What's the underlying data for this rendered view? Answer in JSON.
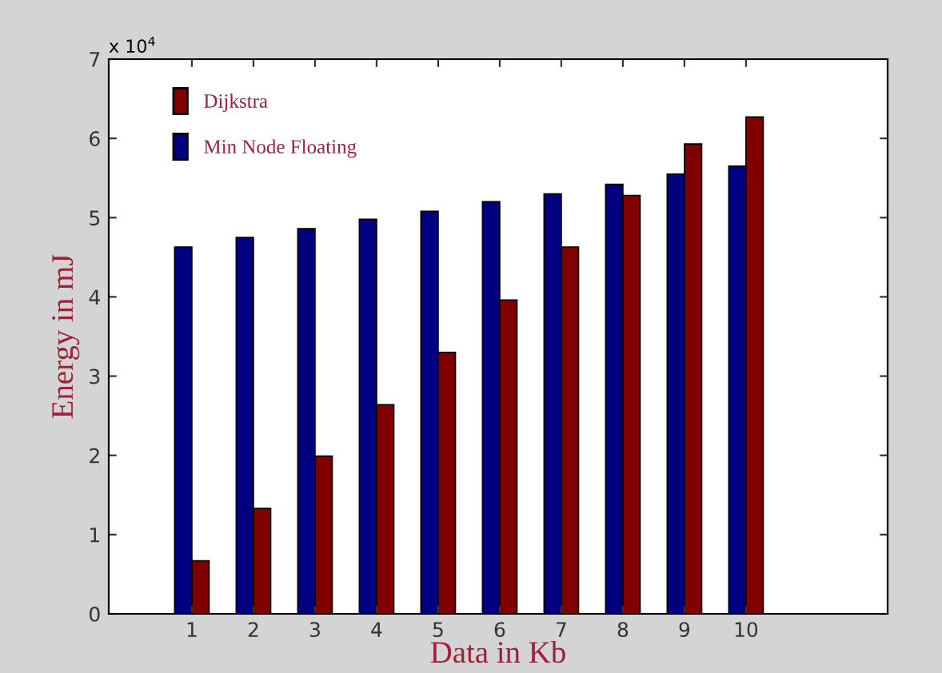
{
  "chart_data": {
    "type": "bar",
    "xlabel": "Data in Kb",
    "ylabel": "Energy in mJ",
    "categories": [
      "1",
      "2",
      "3",
      "4",
      "5",
      "6",
      "7",
      "8",
      "9",
      "10"
    ],
    "series": [
      {
        "name": "Min Node Floating",
        "color": "#000080",
        "values": [
          4.63,
          4.75,
          4.86,
          4.98,
          5.08,
          5.2,
          5.3,
          5.42,
          5.55,
          5.65
        ]
      },
      {
        "name": "Dijkstra",
        "color": "#800000",
        "values": [
          0.67,
          1.33,
          1.99,
          2.64,
          3.3,
          3.96,
          4.63,
          5.28,
          5.93,
          6.27
        ]
      }
    ],
    "ylim": [
      0,
      7
    ],
    "yticks": [
      0,
      1,
      2,
      3,
      4,
      5,
      6,
      7
    ],
    "annotations": [
      "x 10$^{4}$"
    ],
    "legend": "top left",
    "grid": false
  }
}
